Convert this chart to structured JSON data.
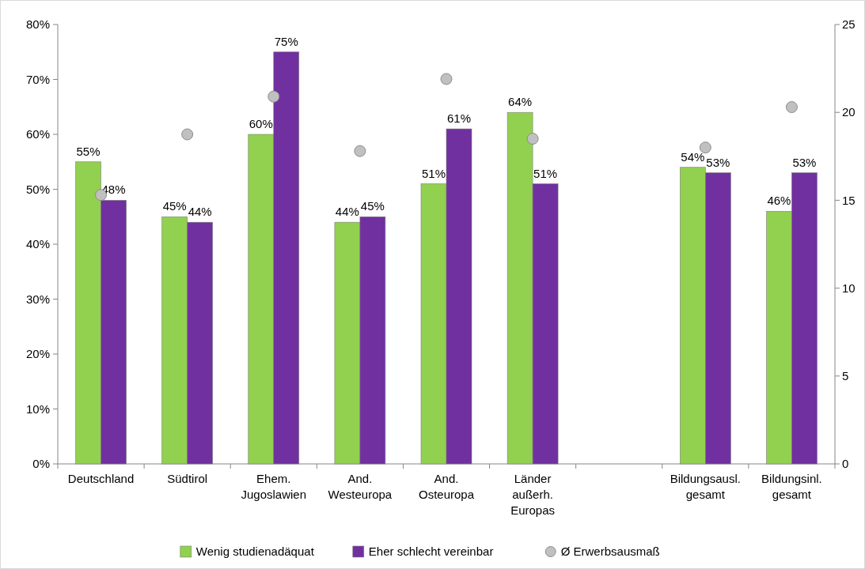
{
  "chart_data": {
    "type": "bar",
    "categories": [
      "Deutschland",
      "Südtirol",
      "Ehem. Jugoslawien",
      "And. Westeuropa",
      "And. Osteuropa",
      "Länder außerh. Europas",
      null,
      "Bildungsausl. gesamt",
      "Bildungsinl. gesamt"
    ],
    "series": [
      {
        "name": "Wenig studienadäquat",
        "color": "#92d050",
        "values": [
          55,
          45,
          60,
          44,
          51,
          64,
          null,
          54,
          46
        ],
        "value_labels": [
          "55%",
          "45%",
          "60%",
          "44%",
          "51%",
          "64%",
          null,
          "54%",
          "46%"
        ]
      },
      {
        "name": "Eher schlecht vereinbar",
        "color": "#7030a0",
        "values": [
          48,
          44,
          75,
          45,
          61,
          51,
          null,
          53,
          53
        ],
        "value_labels": [
          "48%",
          "44%",
          "75%",
          "45%",
          "61%",
          "51%",
          null,
          "53%",
          "53%"
        ]
      },
      {
        "name": "Ø Erwerbsausmaß",
        "type": "scatter",
        "axis": "y2",
        "color": "#c0c0c0",
        "values": [
          15.3,
          18.75,
          20.9,
          17.8,
          21.9,
          18.5,
          null,
          18.0,
          20.3
        ]
      }
    ],
    "ylim": [
      0,
      80
    ],
    "yticks": [
      {
        "value": 0,
        "label": "0%"
      },
      {
        "value": 10,
        "label": "10%"
      },
      {
        "value": 20,
        "label": "20%"
      },
      {
        "value": 30,
        "label": "30%"
      },
      {
        "value": 40,
        "label": "40%"
      },
      {
        "value": 50,
        "label": "50%"
      },
      {
        "value": 60,
        "label": "60%"
      },
      {
        "value": 70,
        "label": "70%"
      },
      {
        "value": 80,
        "label": "80%"
      }
    ],
    "y2lim": [
      0,
      25
    ],
    "y2ticks": [
      0,
      5,
      10,
      15,
      20,
      25
    ],
    "legend": "bottom",
    "marker": "circle"
  }
}
